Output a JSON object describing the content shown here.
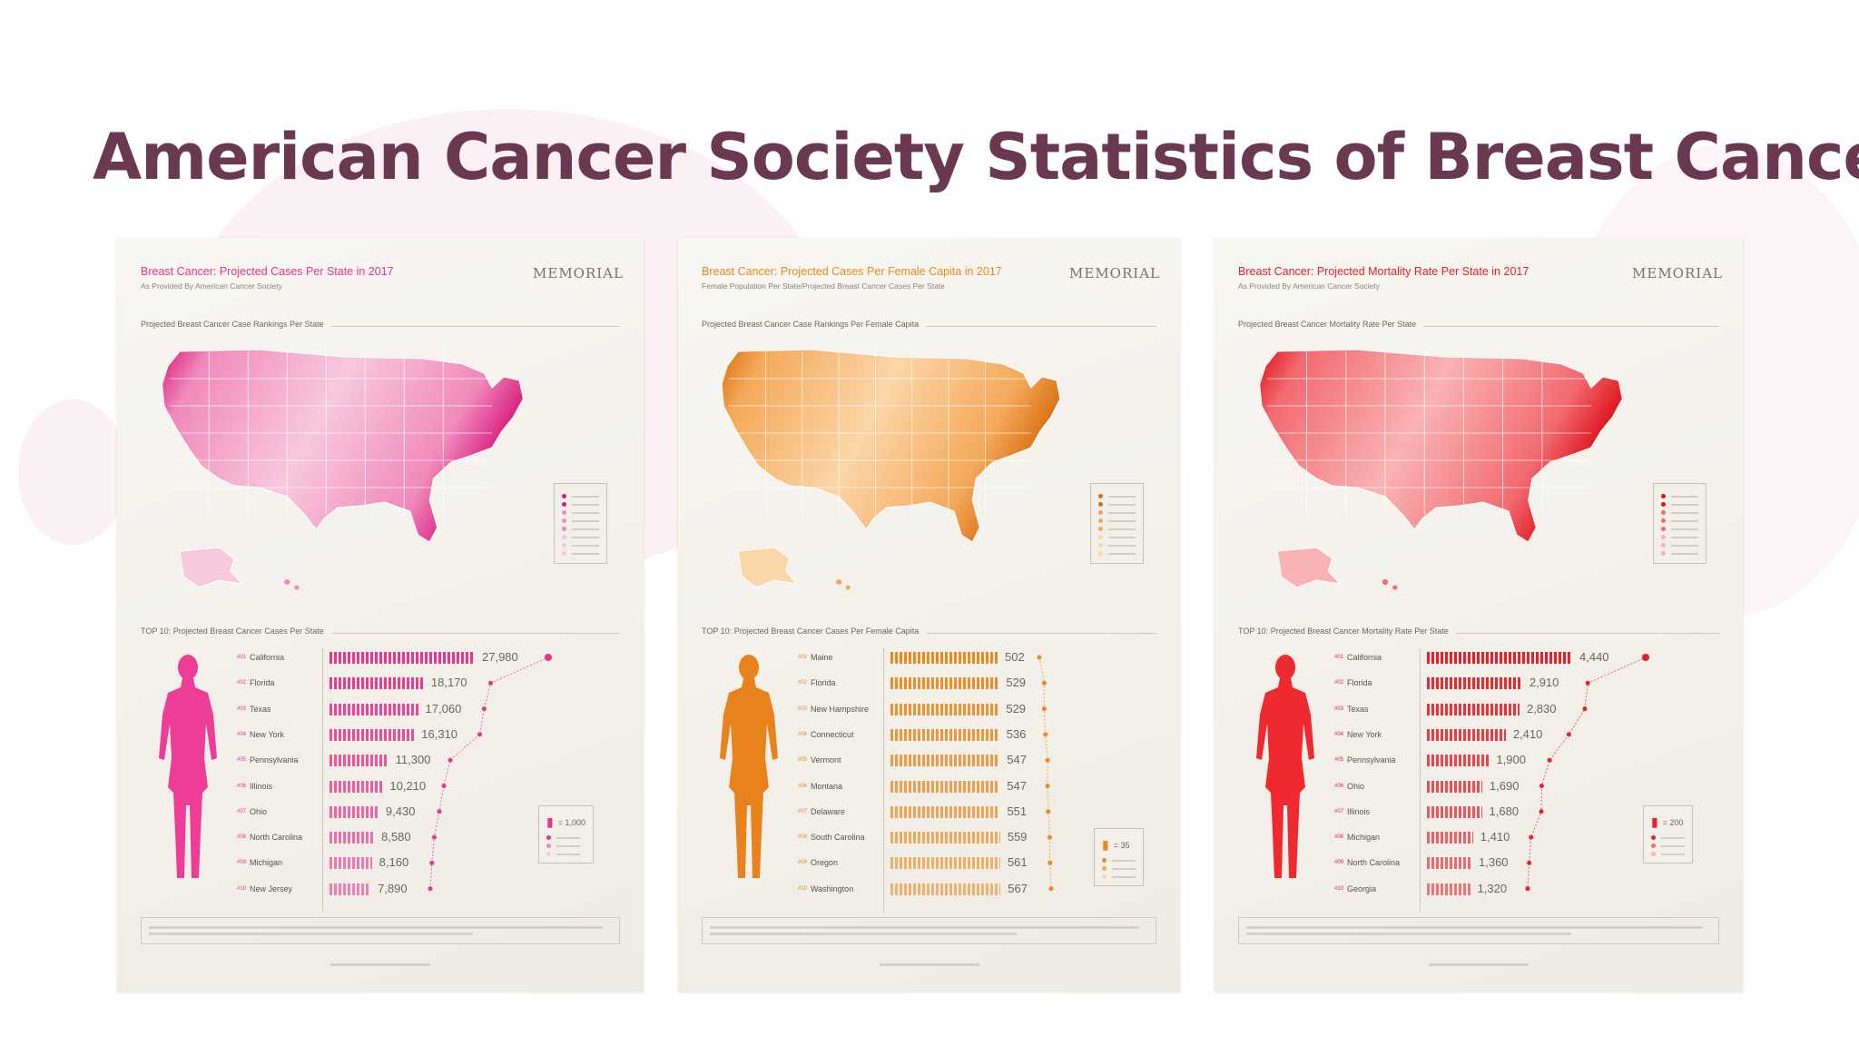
{
  "slide": {
    "title": "American Cancer Society Statistics of Breast Cancer"
  },
  "panels": [
    {
      "title": "Breast Cancer: Projected Cases Per State in 2017",
      "subtitle": "As Provided By American Cancer Society",
      "note": "",
      "logo": "MEMORIAL",
      "map_heading": "Projected Breast Cancer Case Rankings Per State",
      "top10_heading": "TOP 10: Projected Breast Cancer Cases Per State",
      "legend_unit": "= 1,000",
      "accent": "#e8358e",
      "light": "#f8c8de",
      "mid": "#f08abb",
      "dark": "#d81b7e",
      "figure_color": "#ee3d97",
      "chart_data": {
        "type": "bar",
        "title": "TOP 10: Projected Breast Cancer Cases Per State",
        "categories": [
          "California",
          "Florida",
          "Texas",
          "New York",
          "Pennsylvania",
          "Illinois",
          "Ohio",
          "North Carolina",
          "Michigan",
          "New Jersey"
        ],
        "ranks": [
          "#01",
          "#02",
          "#03",
          "#04",
          "#05",
          "#06",
          "#07",
          "#08",
          "#09",
          "#10"
        ],
        "values": [
          27980,
          18170,
          17060,
          16310,
          11300,
          10210,
          9430,
          8580,
          8160,
          7890
        ],
        "labels": [
          "27,980",
          "18,170",
          "17,060",
          "16,310",
          "11,300",
          "10,210",
          "9,430",
          "8,580",
          "8,160",
          "7,890"
        ]
      }
    },
    {
      "title": "Breast Cancer: Projected Cases Per Female Capita in 2017",
      "subtitle": "Female Population Per State/Projected Breast Cancer Cases Per State",
      "note": "",
      "logo": "MEMORIAL",
      "map_heading": "Projected Breast Cancer Case Rankings Per Female Capita",
      "top10_heading": "TOP 10: Projected Breast Cancer Cases Per Female Capita",
      "legend_unit": "= 35",
      "accent": "#ea8a22",
      "light": "#fbd6a8",
      "mid": "#f4a95a",
      "dark": "#d86f10",
      "figure_color": "#e8821d",
      "chart_data": {
        "type": "bar",
        "title": "TOP 10: Projected Breast Cancer Cases Per Female Capita",
        "categories": [
          "Maine",
          "Florida",
          "New Hampshire",
          "Connecticut",
          "Vermont",
          "Montana",
          "Delaware",
          "South Carolina",
          "Oregon",
          "Washington"
        ],
        "ranks": [
          "#01",
          "#02",
          "#03",
          "#04",
          "#05",
          "#06",
          "#07",
          "#08",
          "#09",
          "#10"
        ],
        "values": [
          502,
          529,
          529,
          536,
          547,
          547,
          551,
          559,
          561,
          567
        ],
        "labels": [
          "502",
          "529",
          "529",
          "536",
          "547",
          "547",
          "551",
          "559",
          "561",
          "567"
        ]
      }
    },
    {
      "title": "Breast Cancer: Projected Mortality Rate Per State in 2017",
      "subtitle": "As Provided By American Cancer Society",
      "note": "",
      "logo": "MEMORIAL",
      "map_heading": "Projected Breast Cancer Mortality Rate Per State",
      "top10_heading": "TOP 10: Projected Breast Cancer Mortality Rate Per State",
      "legend_unit": "= 200",
      "accent": "#e8202a",
      "light": "#f9b3b5",
      "mid": "#f26b70",
      "dark": "#dd0f18",
      "figure_color": "#ee2a30",
      "chart_data": {
        "type": "bar",
        "title": "TOP 10: Projected Breast Cancer Mortality Rate Per State",
        "categories": [
          "California",
          "Florida",
          "Texas",
          "New York",
          "Pennsylvania",
          "Ohio",
          "Illinois",
          "Michigan",
          "North Carolina",
          "Georgia"
        ],
        "ranks": [
          "#01",
          "#02",
          "#03",
          "#04",
          "#05",
          "#06",
          "#07",
          "#08",
          "#09",
          "#10"
        ],
        "values": [
          4440,
          2910,
          2830,
          2410,
          1900,
          1690,
          1680,
          1410,
          1360,
          1320
        ],
        "labels": [
          "4,440",
          "2,910",
          "2,830",
          "2,410",
          "1,900",
          "1,690",
          "1,680",
          "1,410",
          "1,360",
          "1,320"
        ]
      }
    }
  ]
}
